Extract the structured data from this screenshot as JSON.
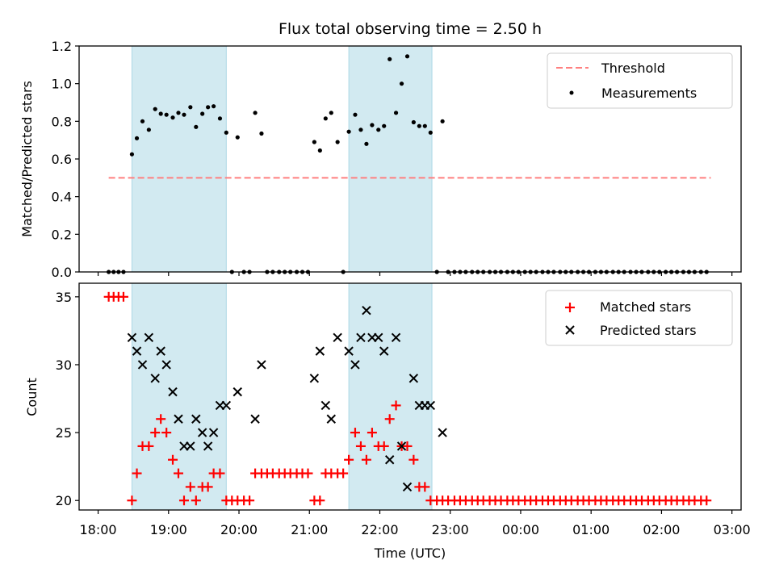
{
  "chart_data": {
    "type": "scatter",
    "title": "Flux total observing time = 2.50 h",
    "xlabel": "Time (UTC)",
    "xtick_labels": [
      "18:00",
      "19:00",
      "20:00",
      "21:00",
      "22:00",
      "23:00",
      "00:00",
      "01:00",
      "02:00",
      "03:00"
    ],
    "xtick_values": [
      18,
      19,
      20,
      21,
      22,
      23,
      24,
      25,
      26,
      27
    ],
    "xlim": [
      17.73,
      27.13
    ],
    "shaded_intervals": [
      [
        18.48,
        19.82
      ],
      [
        21.56,
        22.74
      ]
    ],
    "shade_color": "#add8e6",
    "top": {
      "ylabel": "Matched/Predicted stars",
      "ylim": [
        0,
        1.2
      ],
      "yticks": [
        0,
        0.2,
        0.4,
        0.6,
        0.8,
        1.0,
        1.2
      ],
      "ytick_labels": [
        "0.0",
        "0.2",
        "0.4",
        "0.6",
        "0.8",
        "1.0",
        "1.2"
      ],
      "threshold": {
        "name": "Threshold",
        "value": 0.5,
        "x_range": [
          18.15,
          26.7
        ],
        "color": "#ff7f7f"
      },
      "measurements": {
        "name": "Measurements",
        "color": "#000000",
        "x": [
          18.15,
          18.22,
          18.29,
          18.36,
          18.48,
          18.55,
          18.63,
          18.72,
          18.81,
          18.89,
          18.97,
          19.06,
          19.14,
          19.22,
          19.31,
          19.39,
          19.48,
          19.56,
          19.64,
          19.73,
          19.82,
          19.9,
          19.98,
          20.07,
          20.15,
          20.23,
          20.32,
          20.4,
          20.48,
          20.57,
          20.65,
          20.73,
          20.82,
          20.9,
          20.98,
          21.07,
          21.15,
          21.23,
          21.31,
          21.4,
          21.48,
          21.56,
          21.65,
          21.73,
          21.81,
          21.89,
          21.98,
          22.06,
          22.14,
          22.23,
          22.31,
          22.39,
          22.48,
          22.56,
          22.64,
          22.72,
          22.81,
          22.89,
          22.97,
          23.06,
          23.14,
          23.22,
          23.31,
          23.39,
          23.47,
          23.56,
          23.64,
          23.72,
          23.81,
          23.89,
          23.97,
          24.06,
          24.14,
          24.22,
          24.31,
          24.39,
          24.47,
          24.56,
          24.64,
          24.72,
          24.81,
          24.89,
          24.97,
          25.06,
          25.14,
          25.22,
          25.31,
          25.39,
          25.47,
          25.56,
          25.64,
          25.72,
          25.81,
          25.89,
          25.97,
          26.06,
          26.14,
          26.22,
          26.31,
          26.39,
          26.47,
          26.56,
          26.64
        ],
        "y": [
          0,
          0,
          0,
          0,
          0.625,
          0.71,
          0.8,
          0.755,
          0.865,
          0.84,
          0.835,
          0.82,
          0.845,
          0.835,
          0.875,
          0.77,
          0.84,
          0.875,
          0.88,
          0.815,
          0.74,
          0,
          0.715,
          0,
          0,
          0.845,
          0.735,
          0,
          0,
          0,
          0,
          0,
          0,
          0,
          0,
          0.69,
          0.645,
          0.815,
          0.845,
          0.69,
          0,
          0.745,
          0.835,
          0.755,
          0.68,
          0.78,
          0.755,
          0.775,
          1.13,
          0.845,
          1.0,
          1.145,
          0.795,
          0.775,
          0.775,
          0.74,
          0,
          0.8,
          0,
          0,
          0,
          0,
          0,
          0,
          0,
          0,
          0,
          0,
          0,
          0,
          0,
          0,
          0,
          0,
          0,
          0,
          0,
          0,
          0,
          0,
          0,
          0,
          0,
          0,
          0,
          0,
          0,
          0,
          0,
          0,
          0,
          0,
          0,
          0,
          0,
          0,
          0,
          0,
          0,
          0,
          0,
          0,
          0
        ]
      },
      "legend": {
        "location": "upper right"
      }
    },
    "bottom": {
      "ylabel": "Count",
      "ylim": [
        19.3,
        36.0
      ],
      "yticks": [
        20,
        25,
        30,
        35
      ],
      "ytick_labels": [
        "20",
        "25",
        "30",
        "35"
      ],
      "series": [
        {
          "name": "Matched stars",
          "marker": "+",
          "color": "#ff0000",
          "x": [
            18.15,
            18.22,
            18.29,
            18.36,
            18.48,
            18.55,
            18.63,
            18.72,
            18.81,
            18.89,
            18.97,
            19.06,
            19.14,
            19.22,
            19.31,
            19.39,
            19.48,
            19.56,
            19.64,
            19.73,
            19.82,
            19.9,
            19.98,
            20.07,
            20.15,
            20.23,
            20.32,
            20.4,
            20.48,
            20.57,
            20.65,
            20.73,
            20.82,
            20.9,
            20.98,
            21.07,
            21.15,
            21.23,
            21.31,
            21.4,
            21.48,
            21.56,
            21.65,
            21.73,
            21.81,
            21.89,
            21.98,
            22.06,
            22.14,
            22.23,
            22.31,
            22.39,
            22.48,
            22.56,
            22.64,
            22.72,
            22.81,
            22.89,
            22.97,
            23.06,
            23.14,
            23.22,
            23.31,
            23.39,
            23.47,
            23.56,
            23.64,
            23.72,
            23.81,
            23.89,
            23.97,
            24.06,
            24.14,
            24.22,
            24.31,
            24.39,
            24.47,
            24.56,
            24.64,
            24.72,
            24.81,
            24.89,
            24.97,
            25.06,
            25.14,
            25.22,
            25.31,
            25.39,
            25.47,
            25.56,
            25.64,
            25.72,
            25.81,
            25.89,
            25.97,
            26.06,
            26.14,
            26.22,
            26.31,
            26.39,
            26.47,
            26.56,
            26.64
          ],
          "y": [
            35,
            35,
            35,
            35,
            20,
            22,
            24,
            24,
            25,
            26,
            25,
            23,
            22,
            20,
            21,
            20,
            21,
            21,
            22,
            22,
            20,
            20,
            20,
            20,
            20,
            22,
            22,
            22,
            22,
            22,
            22,
            22,
            22,
            22,
            22,
            20,
            20,
            22,
            22,
            22,
            22,
            23,
            25,
            24,
            23,
            25,
            24,
            24,
            26,
            27,
            24,
            24,
            23,
            21,
            21,
            20,
            20,
            20,
            20,
            20,
            20,
            20,
            20,
            20,
            20,
            20,
            20,
            20,
            20,
            20,
            20,
            20,
            20,
            20,
            20,
            20,
            20,
            20,
            20,
            20,
            20,
            20,
            20,
            20,
            20,
            20,
            20,
            20,
            20,
            20,
            20,
            20,
            20,
            20,
            20,
            20,
            20,
            20,
            20,
            20,
            20,
            20,
            20
          ]
        },
        {
          "name": "Predicted stars",
          "marker": "x",
          "color": "#000000",
          "x": [
            18.48,
            18.55,
            18.63,
            18.72,
            18.81,
            18.89,
            18.97,
            19.06,
            19.14,
            19.22,
            19.31,
            19.39,
            19.48,
            19.56,
            19.64,
            19.73,
            19.82,
            19.98,
            20.23,
            20.32,
            21.07,
            21.15,
            21.23,
            21.31,
            21.4,
            21.56,
            21.65,
            21.73,
            21.81,
            21.89,
            21.98,
            22.06,
            22.14,
            22.23,
            22.31,
            22.39,
            22.48,
            22.56,
            22.64,
            22.72,
            22.89
          ],
          "y": [
            32,
            31,
            30,
            32,
            29,
            31,
            30,
            28,
            26,
            24,
            24,
            26,
            25,
            24,
            25,
            27,
            27,
            28,
            26,
            30,
            29,
            31,
            27,
            26,
            32,
            31,
            30,
            32,
            34,
            32,
            32,
            31,
            23,
            32,
            24,
            21,
            29,
            27,
            27,
            27,
            25
          ]
        }
      ],
      "legend": {
        "location": "upper right"
      }
    }
  }
}
